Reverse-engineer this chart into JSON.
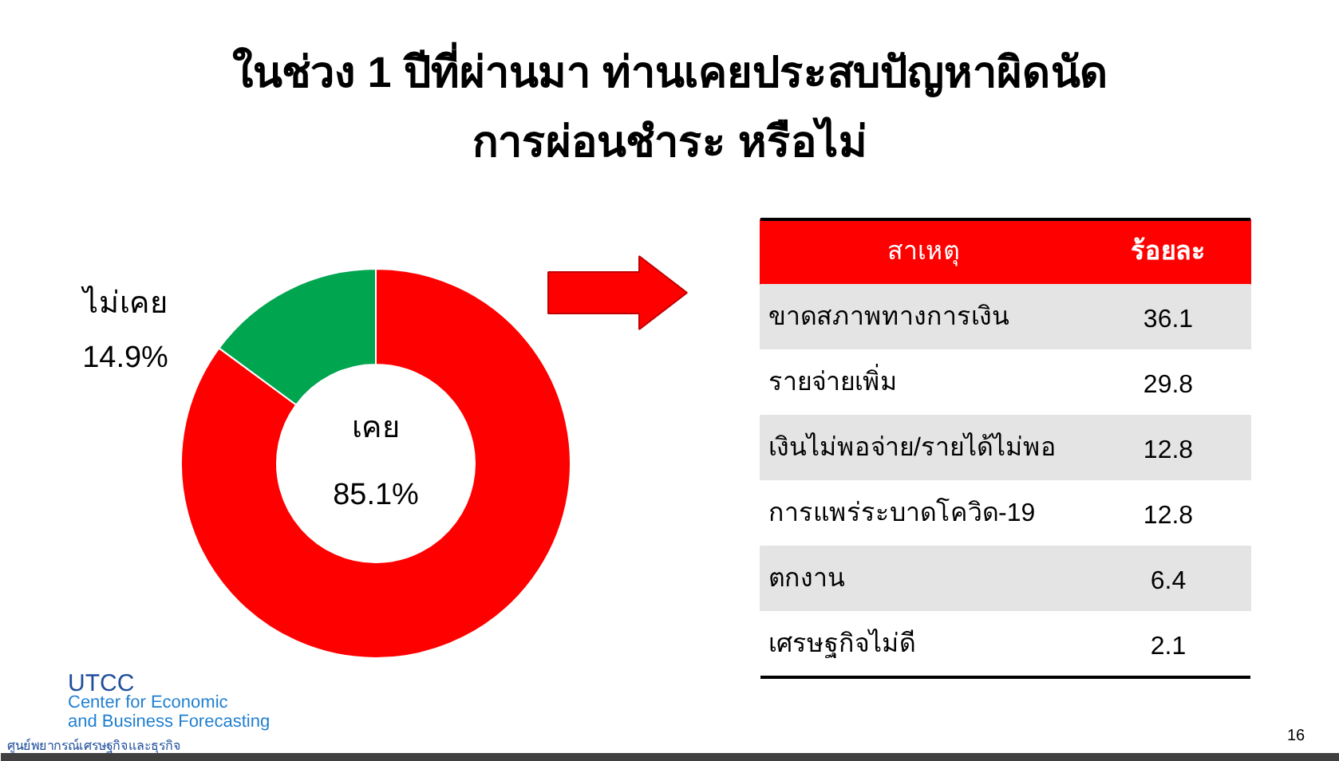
{
  "chart_data": [
    {
      "type": "donut",
      "title": "ในช่วง 1 ปีที่ผ่านมา ท่านเคยประสบปัญหาผิดนัด\nการผ่อนชำระ หรือไม่",
      "categories": [
        "เคย",
        "ไม่เคย"
      ],
      "values": [
        85.1,
        14.9
      ],
      "colors": [
        "#ff0000",
        "#00a550"
      ],
      "value_labels": [
        "85.1%",
        "14.9%"
      ],
      "annotations": [
        "UTCC",
        "Center for Economic\nand Business Forecasting",
        "ศูนย์พยากรณ์เศรษฐกิจและธุรกิจ",
        "16"
      ]
    },
    {
      "type": "other",
      "annotations": [
        "สาเหตุ",
        "ร้อยละ"
      ],
      "categories": [
        "ขาดสภาพทางการเงิน",
        "รายจ่ายเพิ่ม",
        "เงินไม่พอจ่าย/รายได้ไม่พอ",
        "การแพร่ระบาดโควิด-19",
        "ตกงาน",
        "เศรษฐกิจไม่ดี"
      ],
      "values": [
        36.1,
        29.8,
        12.8,
        12.8,
        6.4,
        2.1
      ],
      "data_labels": true
    }
  ]
}
